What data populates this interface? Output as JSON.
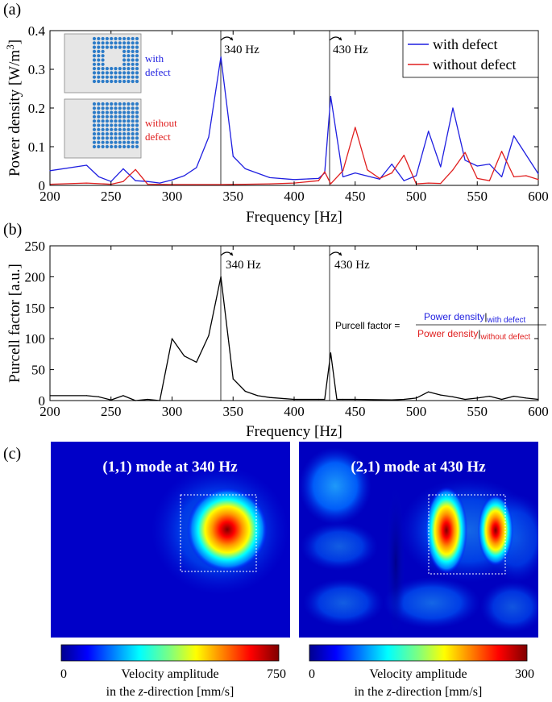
{
  "panel_labels": {
    "a": "(a)",
    "b": "(b)",
    "c": "(c)"
  },
  "markers": {
    "m1": "340 Hz",
    "m2": "430 Hz"
  },
  "colors": {
    "with_defect": "#1f1fe0",
    "without_defect": "#e01f1f",
    "purcell": "#000000",
    "inset_bg": "#e6e6e6",
    "inset_dot": "#2b7bc8"
  },
  "inset": {
    "top_label": "with defect",
    "bottom_label": "without defect",
    "top_lines": [
      "with",
      "defect"
    ],
    "bottom_lines": [
      "without",
      "defect"
    ]
  },
  "formula": {
    "lhs": "Purcell factor =",
    "num": "Power density",
    "num_sub": "with defect",
    "den": "Power density",
    "den_sub": "without defect"
  },
  "chart_data": [
    {
      "type": "line",
      "panel": "a",
      "xlabel": "Frequency [Hz]",
      "ylabel": "Power density [W/m",
      "ylabel_sup": "3",
      "ylabel_end": "]",
      "xlim": [
        200,
        600
      ],
      "ylim": [
        0,
        0.4
      ],
      "xticks": [
        "200",
        "250",
        "300",
        "350",
        "400",
        "450",
        "500",
        "550",
        "600"
      ],
      "yticks": [
        "0",
        "0.1",
        "0.2",
        "0.3",
        "0.4"
      ],
      "legend_position": "top-right",
      "series": [
        {
          "name": "with defect",
          "x": [
            200,
            230,
            240,
            250,
            260,
            270,
            280,
            290,
            300,
            310,
            320,
            330,
            340,
            350,
            360,
            380,
            400,
            420,
            425,
            430,
            440,
            450,
            470,
            480,
            490,
            500,
            510,
            520,
            530,
            540,
            550,
            560,
            570,
            580,
            600
          ],
          "y": [
            0.038,
            0.052,
            0.022,
            0.01,
            0.043,
            0.012,
            0.01,
            0.006,
            0.014,
            0.025,
            0.046,
            0.125,
            0.332,
            0.075,
            0.043,
            0.02,
            0.015,
            0.018,
            0.032,
            0.23,
            0.022,
            0.032,
            0.016,
            0.055,
            0.012,
            0.025,
            0.14,
            0.048,
            0.2,
            0.065,
            0.05,
            0.055,
            0.022,
            0.128,
            0.03
          ]
        },
        {
          "name": "without defect",
          "x": [
            200,
            230,
            250,
            260,
            270,
            280,
            300,
            320,
            340,
            360,
            380,
            400,
            420,
            425,
            430,
            440,
            450,
            460,
            470,
            480,
            490,
            500,
            510,
            520,
            530,
            540,
            550,
            560,
            570,
            580,
            590,
            600
          ],
          "y": [
            0.003,
            0.006,
            0.003,
            0.01,
            0.041,
            0.003,
            0.002,
            0.002,
            0.002,
            0.003,
            0.004,
            0.006,
            0.012,
            0.035,
            0.004,
            0.038,
            0.15,
            0.04,
            0.018,
            0.032,
            0.078,
            0.004,
            0.006,
            0.005,
            0.04,
            0.085,
            0.018,
            0.012,
            0.088,
            0.022,
            0.025,
            0.015
          ]
        }
      ]
    },
    {
      "type": "line",
      "panel": "b",
      "xlabel": "Frequency [Hz]",
      "ylabel": "Purcell factor [a.u.]",
      "xlim": [
        200,
        600
      ],
      "ylim": [
        0,
        250
      ],
      "xticks": [
        "200",
        "250",
        "300",
        "350",
        "400",
        "450",
        "500",
        "550",
        "600"
      ],
      "yticks": [
        "0",
        "50",
        "100",
        "150",
        "200",
        "250"
      ],
      "series": [
        {
          "x": [
            200,
            230,
            240,
            250,
            260,
            270,
            280,
            290,
            300,
            310,
            320,
            330,
            340,
            350,
            360,
            370,
            380,
            400,
            420,
            425,
            430,
            435,
            440,
            450,
            480,
            490,
            500,
            510,
            520,
            530,
            540,
            550,
            560,
            570,
            580,
            590,
            600
          ],
          "y": [
            8,
            8,
            6,
            1,
            8,
            0,
            2,
            0,
            100,
            72,
            62,
            105,
            200,
            35,
            15,
            8,
            5,
            2,
            2,
            2,
            77,
            2,
            2,
            2,
            1,
            2,
            4,
            14,
            9,
            6,
            2,
            4,
            7,
            2,
            7,
            4,
            2
          ]
        }
      ]
    }
  ],
  "maps": [
    {
      "title": "(1,1) mode at 340 Hz",
      "cb_min": "0",
      "cb_max": "750",
      "cb_label1": "Velocity amplitude",
      "cb_label2_pre": "in the ",
      "cb_label2_it": "z",
      "cb_label2_post": "-direction [mm/s]"
    },
    {
      "title": "(2,1) mode at 430 Hz",
      "cb_min": "0",
      "cb_max": "300",
      "cb_label1": "Velocity amplitude",
      "cb_label2_pre": "in the ",
      "cb_label2_it": "z",
      "cb_label2_post": "-direction [mm/s]"
    }
  ]
}
